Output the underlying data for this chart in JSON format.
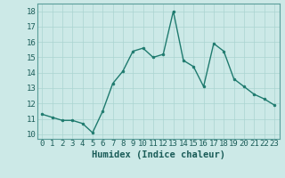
{
  "x": [
    0,
    1,
    2,
    3,
    4,
    5,
    6,
    7,
    8,
    9,
    10,
    11,
    12,
    13,
    14,
    15,
    16,
    17,
    18,
    19,
    20,
    21,
    22,
    23
  ],
  "y": [
    11.3,
    11.1,
    10.9,
    10.9,
    10.7,
    10.1,
    11.5,
    13.3,
    14.1,
    15.4,
    15.6,
    15.0,
    15.2,
    18.0,
    14.8,
    14.4,
    13.1,
    15.9,
    15.4,
    13.6,
    13.1,
    12.6,
    12.3,
    11.9
  ],
  "line_color": "#1e7a6e",
  "marker": "o",
  "marker_size": 2.0,
  "bg_color": "#cce9e7",
  "grid_color": "#aad4d1",
  "grid_color_minor": "#bddedd",
  "xlabel": "Humidex (Indice chaleur)",
  "ylabel_ticks": [
    10,
    11,
    12,
    13,
    14,
    15,
    16,
    17,
    18
  ],
  "xlim": [
    -0.5,
    23.5
  ],
  "ylim": [
    9.7,
    18.5
  ],
  "xlabel_fontsize": 7.5,
  "tick_fontsize": 6.5,
  "line_width": 1.0
}
